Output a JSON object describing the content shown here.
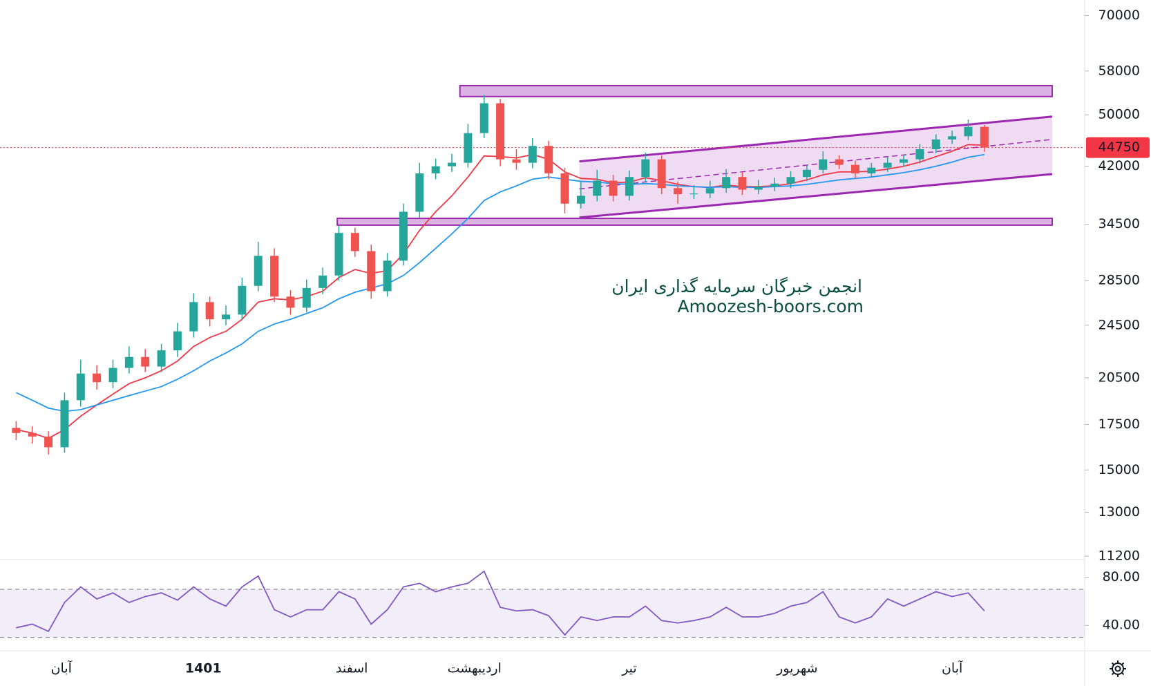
{
  "chart_data": {
    "type": "candlestick",
    "xlim": [
      -1,
      66
    ],
    "ylim": [
      11200,
      73800
    ],
    "log_scale": true,
    "yticks": [
      70000,
      58000,
      50000,
      42000,
      34500,
      28500,
      24500,
      20500,
      17500,
      15000,
      13000,
      11200
    ],
    "xticks": [
      {
        "value": 2.8,
        "label": "آبان"
      },
      {
        "value": 11.6,
        "label": "1401",
        "bold": true
      },
      {
        "value": 20.8,
        "label": "اسفند"
      },
      {
        "value": 28.4,
        "label": "اردیبهشت"
      },
      {
        "value": 38,
        "label": "تیر"
      },
      {
        "value": 48.4,
        "label": "شهریور"
      },
      {
        "value": 58,
        "label": "آبان"
      }
    ],
    "up_color": "#26a69a",
    "down_color": "#ef5350",
    "open": [
      17300,
      17000,
      16800,
      16200,
      19000,
      20800,
      20200,
      21200,
      22000,
      21300,
      22500,
      24000,
      26500,
      25000,
      25400,
      28000,
      31000,
      27000,
      26000,
      27800,
      29000,
      33500,
      31500,
      27500,
      30500,
      36000,
      41000,
      42000,
      42500,
      47000,
      52000,
      43000,
      42500,
      45000,
      41000,
      37000,
      38000,
      40000,
      38000,
      40500,
      43000,
      39000,
      38200,
      38300,
      39000,
      40500,
      38800,
      39200,
      39600,
      40500,
      41500,
      43000,
      42200,
      41000,
      41800,
      42500,
      43000,
      44500,
      46000,
      46500,
      48000
    ],
    "high": [
      17700,
      17400,
      17100,
      19500,
      21800,
      21400,
      21800,
      22800,
      22600,
      23000,
      24700,
      27300,
      27000,
      26200,
      28800,
      32500,
      31800,
      27600,
      28600,
      29800,
      34300,
      34100,
      32200,
      31300,
      37000,
      42500,
      43100,
      43800,
      48500,
      53500,
      52800,
      44500,
      46200,
      45800,
      41800,
      39800,
      41500,
      40800,
      41400,
      44000,
      43600,
      39900,
      39400,
      40000,
      41600,
      41200,
      40100,
      40400,
      41300,
      42200,
      44200,
      43600,
      42800,
      42500,
      43300,
      43700,
      45300,
      46800,
      47400,
      49200,
      48300
    ],
    "low": [
      16600,
      16400,
      15800,
      15900,
      18600,
      19700,
      19800,
      20800,
      20900,
      20900,
      22000,
      23500,
      24400,
      24500,
      25000,
      27500,
      26500,
      25400,
      25600,
      27200,
      28500,
      30900,
      26800,
      27000,
      30000,
      35300,
      40200,
      41200,
      41800,
      46200,
      42000,
      41500,
      41700,
      40200,
      35800,
      36400,
      37300,
      37300,
      37400,
      39800,
      38200,
      37000,
      37600,
      37700,
      38400,
      38100,
      38200,
      38600,
      39000,
      39900,
      41000,
      41600,
      40300,
      40400,
      41200,
      41900,
      42400,
      43900,
      45300,
      45900,
      44100
    ],
    "close": [
      17000,
      16800,
      16200,
      19000,
      20800,
      20200,
      21200,
      22000,
      21300,
      22500,
      24000,
      26500,
      25000,
      25400,
      28000,
      31000,
      27000,
      26000,
      27800,
      29000,
      33500,
      31500,
      27500,
      30500,
      36000,
      41000,
      42000,
      42500,
      47000,
      52000,
      43000,
      42500,
      45000,
      41000,
      37000,
      38000,
      40000,
      38000,
      40500,
      43000,
      39000,
      38200,
      38300,
      39000,
      40500,
      38800,
      39200,
      39600,
      40500,
      41500,
      43000,
      42200,
      41000,
      41800,
      42500,
      43000,
      44500,
      46000,
      46500,
      48000,
      44750
    ],
    "series": [
      {
        "color": "#f23645",
        "values": [
          17200,
          17000,
          16700,
          17200,
          18000,
          18700,
          19400,
          20100,
          20500,
          21000,
          21700,
          22800,
          23500,
          24000,
          25000,
          26500,
          26800,
          26700,
          27000,
          27500,
          28800,
          29600,
          29200,
          29500,
          31200,
          33800,
          36000,
          38000,
          40500,
          43500,
          43400,
          43200,
          43700,
          43000,
          41200,
          40300,
          40200,
          39700,
          39800,
          40400,
          40000,
          39500,
          39200,
          39100,
          39400,
          39200,
          39200,
          39300,
          39600,
          40100,
          40800,
          41200,
          41200,
          41300,
          41600,
          42000,
          42600,
          43400,
          44200,
          45200,
          45100
        ]
      },
      {
        "color": "#2196f3",
        "values": [
          19500,
          19000,
          18500,
          18300,
          18400,
          18700,
          19000,
          19300,
          19600,
          19900,
          20400,
          21000,
          21700,
          22300,
          23000,
          24000,
          24600,
          25000,
          25500,
          26000,
          26800,
          27400,
          27800,
          28200,
          29000,
          30300,
          31800,
          33400,
          35200,
          37400,
          38500,
          39300,
          40200,
          40500,
          40200,
          39900,
          39800,
          39600,
          39500,
          39600,
          39500,
          39300,
          39200,
          39100,
          39200,
          39100,
          39100,
          39200,
          39300,
          39500,
          39800,
          40100,
          40300,
          40500,
          40800,
          41100,
          41500,
          42000,
          42600,
          43300,
          43700
        ]
      }
    ],
    "last_price": {
      "value": 44750,
      "label": "44750",
      "color": "#f23645"
    },
    "zones": [
      {
        "x": [
          27.5,
          64.2
        ],
        "y": [
          53200,
          55200
        ]
      },
      {
        "x": [
          19.9,
          64.2
        ],
        "y": [
          34400,
          35200
        ]
      }
    ],
    "channel": {
      "x": [
        34.9,
        64.2
      ],
      "upper": [
        42700,
        49700
      ],
      "lower": [
        35300,
        40900
      ],
      "middle": [
        38900,
        46000
      ]
    },
    "annotations": [
      "انجمن خبرگان سرمایه گذاری ایران",
      "Amoozesh-boors.com"
    ],
    "rsi": {
      "color": "#7e57c2",
      "ylim": [
        20,
        93
      ],
      "bands": [
        30,
        70
      ],
      "yticks": [
        {
          "value": 80,
          "label": "80.00"
        },
        {
          "value": 40,
          "label": "40.00"
        }
      ],
      "values": [
        38,
        41,
        35,
        59,
        72,
        62,
        67,
        59,
        64,
        67,
        61,
        72,
        62,
        56,
        72,
        81,
        53,
        47,
        53,
        53,
        68,
        62,
        41,
        53,
        72,
        75,
        68,
        72,
        75,
        85,
        55,
        52,
        53,
        48,
        32,
        47,
        44,
        47,
        47,
        56,
        44,
        42,
        44,
        47,
        55,
        47,
        47,
        50,
        56,
        59,
        68,
        47,
        42,
        47,
        62,
        56,
        62,
        68,
        64,
        67,
        52
      ]
    }
  }
}
